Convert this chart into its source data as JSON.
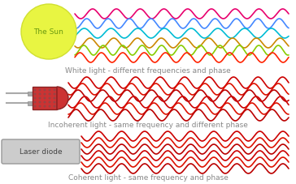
{
  "background_color": "#ffffff",
  "sun_color": "#e8f542",
  "sun_edge_color": "#d0e030",
  "sun_text": "The Sun",
  "sun_text_color": "#6a9a10",
  "white_light_caption": "White light - different frequencies and phase",
  "incoherent_caption": "Incoherent light - same frequency and different phase",
  "coherent_caption": "Coherent light - same frequency and phase",
  "caption_color": "#888888",
  "caption_fontsize": 6.5,
  "wave_colors_white": [
    "#e8006e",
    "#4488ff",
    "#00bcd4",
    "#cc8800",
    "#88cc00",
    "#ff2200"
  ],
  "wave_colors_incoherent": [
    "#cc0000",
    "#dd1100",
    "#bb0000",
    "#cc0000",
    "#dd1100",
    "#bb0000",
    "#cc0000"
  ],
  "wave_colors_coherent": [
    "#cc0000",
    "#dd1100",
    "#bb0000",
    "#cc0000",
    "#dd1100",
    "#bb0000",
    "#cc0000"
  ],
  "led_body_color": "#cc3333",
  "led_dot_color": "#994444",
  "led_outline_color": "#882222",
  "laser_box_facecolor": "#cccccc",
  "laser_box_edgecolor": "#999999",
  "laser_text": "Laser diode",
  "laser_text_color": "#444444"
}
